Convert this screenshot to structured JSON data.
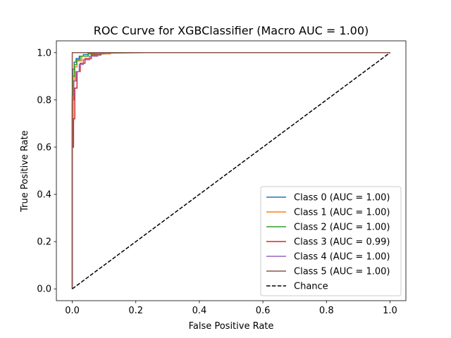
{
  "chart_data": {
    "type": "line",
    "title": "ROC Curve for XGBClassifier (Macro AUC = 1.00)",
    "xlabel": "False Positive Rate",
    "ylabel": "True Positive Rate",
    "xlim": [
      -0.05,
      1.05
    ],
    "ylim": [
      -0.05,
      1.05
    ],
    "xticks": [
      "0.0",
      "0.2",
      "0.4",
      "0.6",
      "0.8",
      "1.0"
    ],
    "yticks": [
      "0.0",
      "0.2",
      "0.4",
      "0.6",
      "0.8",
      "1.0"
    ],
    "grid": false,
    "legend_position": "bottom-right",
    "series": [
      {
        "name": "Class 0 (AUC = 1.00)",
        "color": "#1f77b4",
        "x": [
          0,
          0,
          0.002,
          0.002,
          0.006,
          0.006,
          0.012,
          0.012,
          0.022,
          0.022,
          0.035,
          0.035,
          0.05,
          0.05,
          0.08,
          1.0
        ],
        "y": [
          0,
          0.78,
          0.78,
          0.93,
          0.93,
          0.96,
          0.96,
          0.975,
          0.975,
          0.985,
          0.985,
          0.992,
          0.992,
          0.997,
          1.0,
          1.0
        ]
      },
      {
        "name": "Class 1 (AUC = 1.00)",
        "color": "#ff7f0e",
        "x": [
          0,
          0,
          0.003,
          0.003,
          0.008,
          0.008,
          0.015,
          0.015,
          0.03,
          0.03,
          0.06,
          0.06,
          0.12,
          0.12,
          1.0
        ],
        "y": [
          0,
          0.65,
          0.65,
          0.88,
          0.88,
          0.94,
          0.94,
          0.965,
          0.965,
          0.985,
          0.985,
          0.995,
          0.995,
          1.0,
          1.0
        ]
      },
      {
        "name": "Class 2 (AUC = 1.00)",
        "color": "#2ca02c",
        "x": [
          0,
          0,
          0.002,
          0.002,
          0.007,
          0.007,
          0.014,
          0.014,
          0.025,
          0.025,
          0.05,
          0.05,
          0.1,
          0.1,
          0.235,
          1.0
        ],
        "y": [
          0,
          0.82,
          0.82,
          0.9,
          0.9,
          0.95,
          0.95,
          0.97,
          0.97,
          0.985,
          0.985,
          0.995,
          0.995,
          0.998,
          1.0,
          1.0
        ]
      },
      {
        "name": "Class 3 (AUC = 0.99)",
        "color": "#d62728",
        "x": [
          0,
          0,
          0.004,
          0.004,
          0.008,
          0.008,
          0.015,
          0.015,
          0.025,
          0.025,
          0.04,
          0.04,
          0.06,
          0.06,
          0.09,
          0.09,
          1.0
        ],
        "y": [
          0,
          0.6,
          0.6,
          0.72,
          0.72,
          0.85,
          0.85,
          0.92,
          0.92,
          0.955,
          0.955,
          0.975,
          0.975,
          0.99,
          0.99,
          1.0,
          1.0
        ]
      },
      {
        "name": "Class 4 (AUC = 1.00)",
        "color": "#9467bd",
        "x": [
          0,
          0,
          0.005,
          0.005,
          0.012,
          0.012,
          0.022,
          0.022,
          0.035,
          0.035,
          0.055,
          0.055,
          0.08,
          0.08,
          0.12,
          1.0
        ],
        "y": [
          0,
          0.8,
          0.8,
          0.88,
          0.88,
          0.92,
          0.92,
          0.95,
          0.95,
          0.97,
          0.97,
          0.985,
          0.985,
          0.995,
          1.0,
          1.0
        ]
      },
      {
        "name": "Class 5 (AUC = 1.00)",
        "color": "#8c564b",
        "x": [
          0,
          0,
          1.0
        ],
        "y": [
          0,
          1.0,
          1.0
        ]
      },
      {
        "name": "Chance",
        "color": "#000000",
        "dashed": true,
        "x": [
          0,
          1
        ],
        "y": [
          0,
          1
        ]
      }
    ]
  }
}
